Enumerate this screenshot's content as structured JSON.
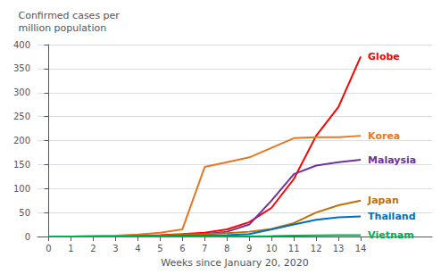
{
  "chart_data": {
    "type": "line",
    "xlabel": "Weeks since January 20, 2020",
    "ylabel": "Confirmed cases per\nmillion population",
    "x": [
      0,
      1,
      2,
      3,
      4,
      5,
      6,
      7,
      8,
      9,
      10,
      11,
      12,
      13,
      14
    ],
    "series": [
      {
        "name": "Globe",
        "color": "#ff0000",
        "values": [
          0,
          0,
          0.5,
          1,
          2,
          3,
          5,
          8,
          15,
          30,
          60,
          120,
          210,
          270,
          375
        ]
      },
      {
        "name": "Korea",
        "color": "#e87722",
        "values": [
          0,
          0,
          1,
          2,
          4,
          8,
          15,
          145,
          155,
          165,
          185,
          205,
          207,
          207,
          210
        ]
      },
      {
        "name": "Malaysia",
        "color": "#7030a0",
        "values": [
          0,
          0,
          0,
          0,
          0,
          1,
          2,
          5,
          10,
          25,
          75,
          130,
          148,
          155,
          160
        ]
      },
      {
        "name": "Japan",
        "color": "#c07000",
        "values": [
          0,
          0,
          0,
          0,
          1,
          2,
          4,
          5,
          7,
          10,
          16,
          28,
          50,
          65,
          75
        ]
      },
      {
        "name": "Thailand",
        "color": "#0070c0",
        "values": [
          0,
          0,
          0,
          0,
          1,
          1,
          2,
          2,
          3,
          5,
          15,
          25,
          35,
          40,
          42
        ]
      },
      {
        "name": "Vietnam",
        "color": "#00b050",
        "values": [
          0,
          0,
          0,
          0,
          0,
          0,
          0,
          0,
          0,
          0.5,
          1,
          2,
          2.5,
          3,
          3
        ]
      }
    ],
    "xlim": [
      -0.5,
      17.2
    ],
    "xticks": [
      0,
      1,
      2,
      3,
      4,
      5,
      6,
      7,
      8,
      9,
      10,
      11,
      12,
      13,
      14
    ],
    "ylim": [
      0,
      400
    ],
    "yticks": [
      0,
      50,
      100,
      150,
      200,
      250,
      300,
      350,
      400
    ],
    "grid": "y"
  }
}
